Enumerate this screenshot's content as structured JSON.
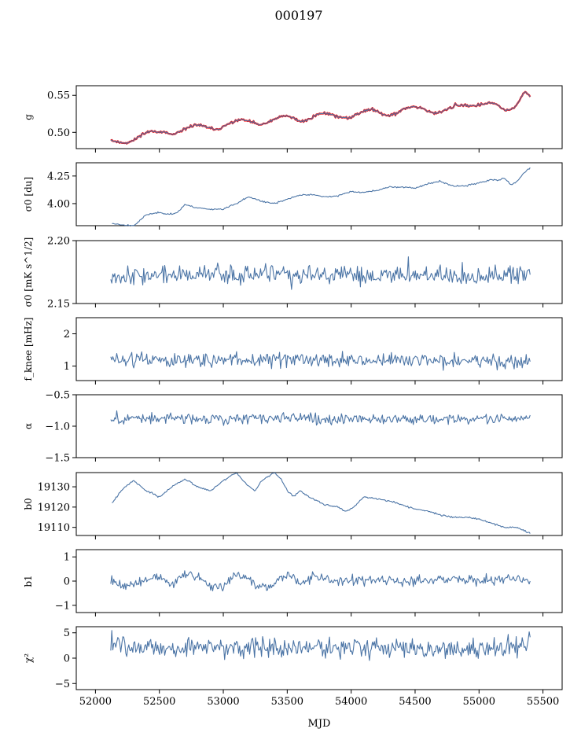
{
  "title": "000197",
  "colors": {
    "series": "#4c75a6",
    "overlay": "#ff0000"
  },
  "chart_data": {
    "type": "line",
    "shared_x": true,
    "xlabel": "MJD",
    "xlim": [
      51850,
      55650
    ],
    "xticks": [
      52000,
      52500,
      53000,
      53500,
      54000,
      54500,
      55000,
      55500
    ],
    "xtick_labels": [
      "52000",
      "52500",
      "53000",
      "53500",
      "54000",
      "54500",
      "55000",
      "55500"
    ],
    "panels": [
      {
        "id": "g",
        "ylabel": "g",
        "ylim": [
          0.478,
          0.563
        ],
        "yticks": [
          0.5,
          0.55
        ],
        "ytick_labels": [
          "0.50",
          "0.55"
        ],
        "x": [
          52120,
          52150,
          52200,
          52250,
          52300,
          52350,
          52400,
          52450,
          52500,
          52550,
          52600,
          52650,
          52700,
          52750,
          52800,
          52850,
          52900,
          52950,
          53000,
          53050,
          53100,
          53150,
          53200,
          53250,
          53300,
          53350,
          53400,
          53450,
          53500,
          53550,
          53600,
          53650,
          53700,
          53750,
          53800,
          53850,
          53900,
          53950,
          54000,
          54050,
          54100,
          54150,
          54200,
          54250,
          54300,
          54350,
          54400,
          54450,
          54500,
          54550,
          54600,
          54650,
          54700,
          54750,
          54800,
          54850,
          54900,
          54950,
          55000,
          55050,
          55100,
          55120,
          55150,
          55200,
          55250,
          55300,
          55330,
          55360,
          55400
        ],
        "y": [
          0.49,
          0.488,
          0.486,
          0.486,
          0.489,
          0.496,
          0.5,
          0.502,
          0.501,
          0.499,
          0.497,
          0.499,
          0.504,
          0.509,
          0.51,
          0.508,
          0.505,
          0.504,
          0.507,
          0.512,
          0.516,
          0.517,
          0.515,
          0.512,
          0.51,
          0.513,
          0.518,
          0.521,
          0.522,
          0.519,
          0.515,
          0.516,
          0.521,
          0.525,
          0.526,
          0.524,
          0.521,
          0.519,
          0.52,
          0.525,
          0.529,
          0.531,
          0.529,
          0.525,
          0.523,
          0.525,
          0.53,
          0.534,
          0.535,
          0.533,
          0.529,
          0.526,
          0.527,
          0.531,
          0.535,
          0.537,
          0.537,
          0.535,
          0.537,
          0.539,
          0.54,
          0.538,
          0.536,
          0.53,
          0.531,
          0.537,
          0.548,
          0.556,
          0.547
        ],
        "overlay": true,
        "noise": 0.0012,
        "seed": 11
      },
      {
        "id": "sigma0_du",
        "ylabel": "σ0 [du]",
        "ylim": [
          3.8,
          4.37
        ],
        "yticks": [
          4.0,
          4.25
        ],
        "ytick_labels": [
          "4.00",
          "4.25"
        ],
        "x": [
          52130,
          52200,
          52300,
          52350,
          52400,
          52500,
          52600,
          52650,
          52700,
          52800,
          52900,
          53000,
          53100,
          53200,
          53300,
          53400,
          53500,
          53600,
          53700,
          53800,
          53900,
          54000,
          54100,
          54200,
          54300,
          54400,
          54500,
          54600,
          54700,
          54800,
          54900,
          55000,
          55050,
          55100,
          55150,
          55200,
          55250,
          55300,
          55350,
          55400
        ],
        "y": [
          3.82,
          3.81,
          3.8,
          3.85,
          3.9,
          3.92,
          3.9,
          3.93,
          3.99,
          3.96,
          3.95,
          3.95,
          4.0,
          4.06,
          4.02,
          4.0,
          4.04,
          4.08,
          4.08,
          4.06,
          4.07,
          4.11,
          4.1,
          4.12,
          4.15,
          4.15,
          4.14,
          4.18,
          4.2,
          4.16,
          4.16,
          4.19,
          4.2,
          4.22,
          4.21,
          4.23,
          4.17,
          4.2,
          4.28,
          4.32
        ],
        "noise": 0.004,
        "seed": 23
      },
      {
        "id": "sigma0_mK",
        "ylabel": "σ0 [mK s^1/2]",
        "ylim": [
          2.15,
          2.2
        ],
        "yticks": [
          2.15,
          2.2
        ],
        "ytick_labels": [
          "2.15",
          "2.20"
        ],
        "x": [
          52120,
          55400
        ],
        "y": [
          2.1725,
          2.1725
        ],
        "noise": 0.0045,
        "seed": 37
      },
      {
        "id": "fknee",
        "ylabel": "f_knee [mHz]",
        "ylim": [
          0.55,
          2.5
        ],
        "yticks": [
          1,
          2
        ],
        "ytick_labels": [
          "1",
          "2"
        ],
        "x": [
          52120,
          55400
        ],
        "y": [
          1.2,
          1.15
        ],
        "noise": 0.14,
        "seed": 51
      },
      {
        "id": "alpha",
        "ylabel": "α",
        "ylim": [
          -1.5,
          -0.5
        ],
        "yticks": [
          -1.5,
          -1.0,
          -0.5
        ],
        "ytick_labels": [
          "−1.5",
          "−1.0",
          "−0.5"
        ],
        "x": [
          52120,
          55400
        ],
        "y": [
          -0.88,
          -0.88
        ],
        "noise": 0.05,
        "seed": 67
      },
      {
        "id": "b0",
        "ylabel": "b0",
        "ylim": [
          19106,
          19137
        ],
        "yticks": [
          19110,
          19120,
          19130
        ],
        "ytick_labels": [
          "19110",
          "19120",
          "19130"
        ],
        "x": [
          52130,
          52200,
          52250,
          52300,
          52400,
          52500,
          52600,
          52700,
          52800,
          52900,
          53000,
          53100,
          53200,
          53250,
          53300,
          53400,
          53450,
          53500,
          53550,
          53600,
          53650,
          53700,
          53800,
          53900,
          53950,
          54000,
          54100,
          54200,
          54300,
          54400,
          54500,
          54600,
          54700,
          54800,
          54900,
          55000,
          55100,
          55200,
          55300,
          55400
        ],
        "y": [
          19122,
          19128,
          19131,
          19133,
          19128,
          19125,
          19130,
          19134,
          19130,
          19128,
          19133,
          19137,
          19130,
          19128,
          19133,
          19137,
          19134,
          19128,
          19125,
          19128,
          19126,
          19124,
          19121,
          19120,
          19118,
          19119,
          19125,
          19124,
          19123,
          19121,
          19119,
          19118,
          19116,
          19115,
          19115,
          19114,
          19112,
          19110,
          19110,
          19107
        ],
        "noise": 0.25,
        "seed": 79
      },
      {
        "id": "b1",
        "ylabel": "b1",
        "ylim": [
          -1.3,
          1.3
        ],
        "yticks": [
          -1,
          0,
          1
        ],
        "ytick_labels": [
          "−1",
          "0",
          "1"
        ],
        "x": [
          52120,
          52200,
          52300,
          52400,
          52500,
          52600,
          52700,
          52800,
          52900,
          53000,
          53100,
          53200,
          53300,
          53400,
          53500,
          53600,
          53700,
          53800,
          53900,
          54000,
          54100,
          54200,
          54400,
          54600,
          54800,
          55000,
          55200,
          55400
        ],
        "y": [
          0.0,
          -0.2,
          -0.1,
          0.1,
          0.2,
          -0.1,
          0.3,
          0.2,
          -0.3,
          -0.2,
          0.3,
          0.1,
          -0.3,
          -0.1,
          0.3,
          -0.1,
          0.2,
          0.1,
          0.0,
          0.1,
          0.0,
          0.1,
          0.0,
          0.0,
          0.1,
          0.0,
          0.1,
          0.0
        ],
        "noise": 0.12,
        "seed": 91
      },
      {
        "id": "chi2",
        "ylabel": "χ²",
        "ylim": [
          -6.2,
          6.2
        ],
        "yticks": [
          -5,
          0,
          5
        ],
        "ytick_labels": [
          "−5",
          "0",
          "5"
        ],
        "x": [
          52120,
          52500,
          53000,
          53500,
          54000,
          54500,
          55000,
          55300,
          55400
        ],
        "y": [
          2.0,
          2.0,
          2.0,
          2.0,
          2.0,
          2.0,
          2.0,
          2.5,
          3.5
        ],
        "noise": 1.2,
        "seed": 103
      }
    ]
  }
}
